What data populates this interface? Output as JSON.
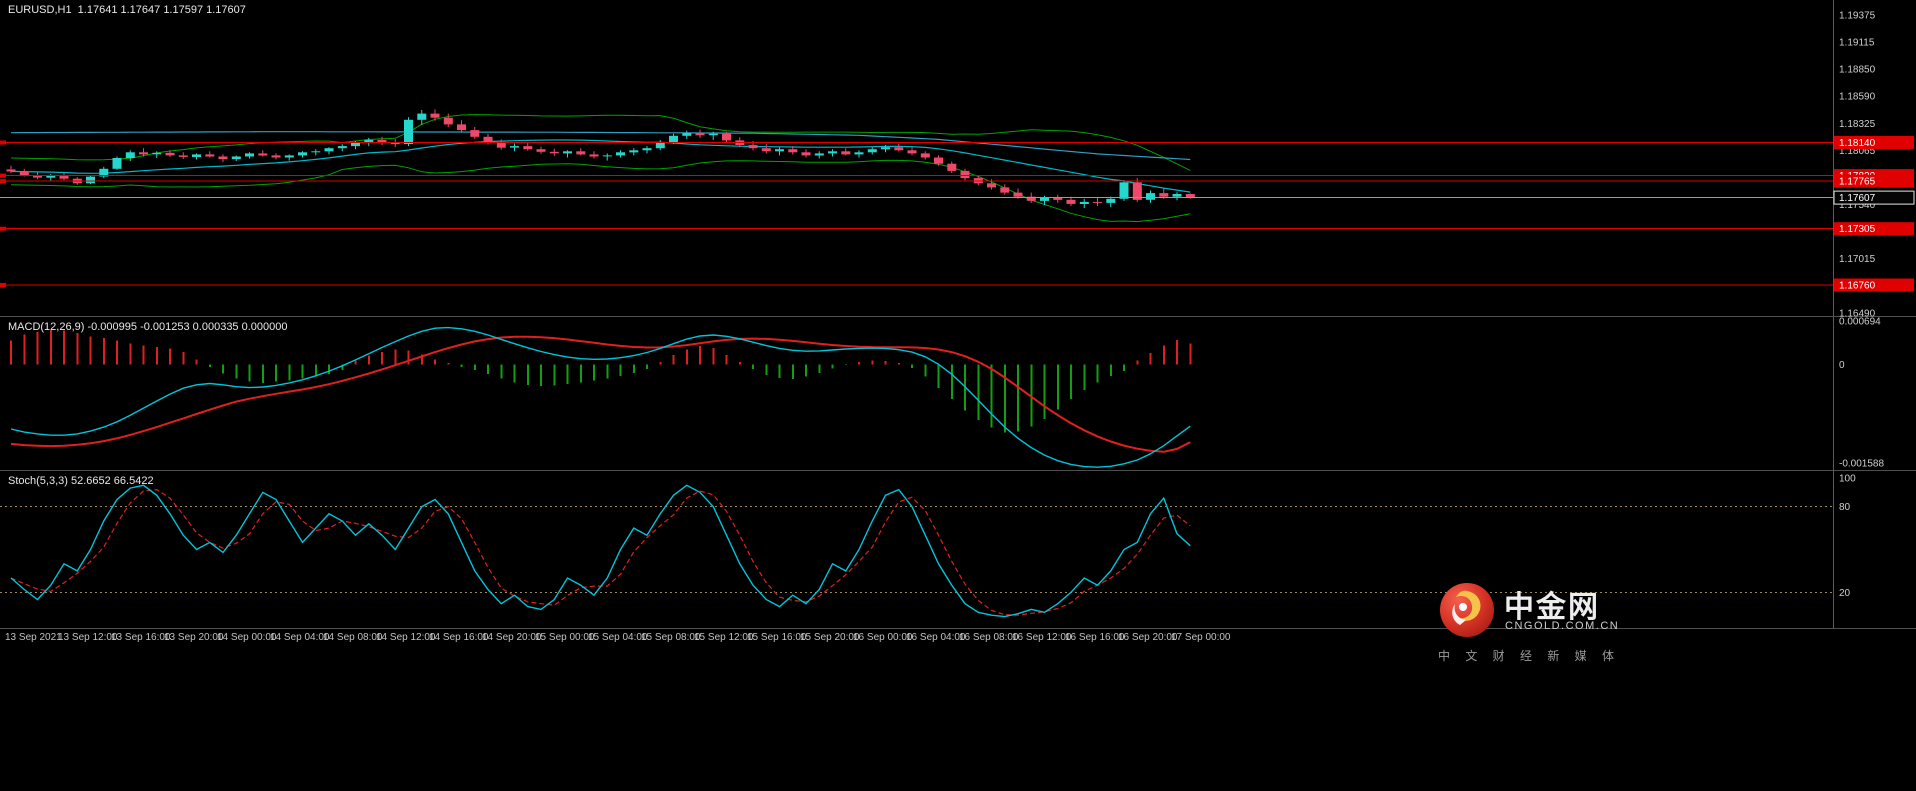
{
  "window": {
    "title_ohlc": "EURUSD,H1  1.17641 1.17647 1.17597 1.17607"
  },
  "colors": {
    "up": "#26d7cd",
    "down": "#f0486a",
    "band": "#00a400",
    "ma_fast": "#00b7c9",
    "ma_trend": "#2e9ec4",
    "hline": "#e00000",
    "price_line": "#57b6c2",
    "macd_line": "#00c4d8",
    "signal_line": "#e02020",
    "hist_pos": "#e02020",
    "hist_neg": "#12a012",
    "stoch_k": "#00c4d8",
    "stoch_d": "#e02020",
    "level": "#9a8a62",
    "tag_red_bg": "#e00000",
    "text": "#cfcfcf",
    "separator": "#5a5a5a"
  },
  "chart_data": {
    "type": "candlestick",
    "symbol": "EURUSD",
    "timeframe": "H1",
    "quote": {
      "open": "1.17641",
      "high": "1.17647",
      "low": "1.17597",
      "close": "1.17607"
    },
    "price_axis": {
      "top": 1.1952,
      "bottom": 1.1646,
      "ticks": [
        {
          "label": "1.19375",
          "value": 1.19375
        },
        {
          "label": "1.19115",
          "value": 1.19115
        },
        {
          "label": "1.18850",
          "value": 1.1885
        },
        {
          "label": "1.18590",
          "value": 1.1859
        },
        {
          "label": "1.18325",
          "value": 1.18325
        },
        {
          "label": "1.18065",
          "value": 1.18065
        },
        {
          "label": "1.17540",
          "value": 1.1754
        },
        {
          "label": "1.17015",
          "value": 1.17015
        },
        {
          "label": "1.16490",
          "value": 1.1649
        }
      ]
    },
    "hlines": [
      {
        "label": "1.18140",
        "value": 1.1814
      },
      {
        "label": "1.17820",
        "value": 1.1782
      },
      {
        "label": "1.17765",
        "value": 1.17765
      },
      {
        "label": "1.17305",
        "value": 1.17305
      },
      {
        "label": "1.16760",
        "value": 1.1676
      }
    ],
    "current_price": {
      "label": "1.17607",
      "value": 1.17607
    },
    "overlays": {
      "bollinger": {
        "period": 20,
        "dev": 2,
        "min_halfwidth": 0.0013
      },
      "ma_trend": [
        [
          0,
          1.18235
        ],
        [
          20,
          1.18245
        ],
        [
          40,
          1.1824
        ],
        [
          56,
          1.1823
        ],
        [
          64,
          1.1821
        ],
        [
          70,
          1.1817
        ],
        [
          76,
          1.181
        ],
        [
          82,
          1.1803
        ],
        [
          89,
          1.17975
        ]
      ]
    },
    "candles": [
      [
        1.1788,
        1.17915,
        1.17845,
        1.1786
      ],
      [
        1.1786,
        1.17885,
        1.1781,
        1.17825
      ],
      [
        1.17825,
        1.17855,
        1.17785,
        1.178
      ],
      [
        1.178,
        1.17835,
        1.17765,
        1.1782
      ],
      [
        1.1782,
        1.17845,
        1.17775,
        1.1779
      ],
      [
        1.1779,
        1.17805,
        1.1773,
        1.17745
      ],
      [
        1.17745,
        1.17825,
        1.17735,
        1.1781
      ],
      [
        1.1781,
        1.17905,
        1.17795,
        1.17885
      ],
      [
        1.17885,
        1.18005,
        1.17875,
        1.1799
      ],
      [
        1.1799,
        1.18065,
        1.1796,
        1.18045
      ],
      [
        1.18045,
        1.18085,
        1.18005,
        1.18025
      ],
      [
        1.18025,
        1.18055,
        1.1799,
        1.1804
      ],
      [
        1.1804,
        1.18065,
        1.18,
        1.18015
      ],
      [
        1.18015,
        1.18045,
        1.1798,
        1.18
      ],
      [
        1.18,
        1.18035,
        1.17975,
        1.18025
      ],
      [
        1.18025,
        1.18055,
        1.17995,
        1.18005
      ],
      [
        1.18005,
        1.18025,
        1.1795,
        1.1798
      ],
      [
        1.1798,
        1.18015,
        1.1796,
        1.18005
      ],
      [
        1.18005,
        1.18045,
        1.17985,
        1.18035
      ],
      [
        1.18035,
        1.18065,
        1.18005,
        1.18015
      ],
      [
        1.18015,
        1.18035,
        1.17975,
        1.17995
      ],
      [
        1.17995,
        1.18025,
        1.17965,
        1.18015
      ],
      [
        1.18015,
        1.18055,
        1.17995,
        1.18045
      ],
      [
        1.18045,
        1.18075,
        1.18015,
        1.18055
      ],
      [
        1.18055,
        1.18095,
        1.18025,
        1.18085
      ],
      [
        1.18085,
        1.18125,
        1.18055,
        1.18105
      ],
      [
        1.18105,
        1.18155,
        1.18075,
        1.18135
      ],
      [
        1.18135,
        1.18185,
        1.18105,
        1.18165
      ],
      [
        1.18165,
        1.18195,
        1.18115,
        1.18145
      ],
      [
        1.18145,
        1.18175,
        1.18095,
        1.18125
      ],
      [
        1.18125,
        1.18385,
        1.18105,
        1.1836
      ],
      [
        1.1836,
        1.18455,
        1.1831,
        1.1842
      ],
      [
        1.1842,
        1.1846,
        1.1835,
        1.1838
      ],
      [
        1.1838,
        1.1842,
        1.1829,
        1.18315
      ],
      [
        1.18315,
        1.18355,
        1.18235,
        1.1826
      ],
      [
        1.1826,
        1.1829,
        1.18175,
        1.18195
      ],
      [
        1.18195,
        1.18225,
        1.1812,
        1.1814
      ],
      [
        1.1814,
        1.1817,
        1.1807,
        1.1809
      ],
      [
        1.1809,
        1.1813,
        1.18055,
        1.18105
      ],
      [
        1.18105,
        1.18135,
        1.1806,
        1.18075
      ],
      [
        1.18075,
        1.181,
        1.1803,
        1.1805
      ],
      [
        1.1805,
        1.1808,
        1.1801,
        1.18035
      ],
      [
        1.18035,
        1.18065,
        1.17995,
        1.18055
      ],
      [
        1.18055,
        1.18085,
        1.18015,
        1.18025
      ],
      [
        1.18025,
        1.18055,
        1.17985,
        1.18005
      ],
      [
        1.18005,
        1.18035,
        1.17965,
        1.18015
      ],
      [
        1.18015,
        1.18065,
        1.17995,
        1.18045
      ],
      [
        1.18045,
        1.18085,
        1.18015,
        1.18065
      ],
      [
        1.18065,
        1.18105,
        1.18035,
        1.18085
      ],
      [
        1.18085,
        1.18165,
        1.18065,
        1.18145
      ],
      [
        1.18145,
        1.18225,
        1.18125,
        1.18205
      ],
      [
        1.18205,
        1.18255,
        1.18175,
        1.1823
      ],
      [
        1.1823,
        1.18265,
        1.18185,
        1.1821
      ],
      [
        1.1821,
        1.18245,
        1.18165,
        1.18225
      ],
      [
        1.18225,
        1.18245,
        1.1814,
        1.1816
      ],
      [
        1.1816,
        1.1819,
        1.18095,
        1.18115
      ],
      [
        1.18115,
        1.18155,
        1.18065,
        1.18085
      ],
      [
        1.18085,
        1.18125,
        1.18035,
        1.18055
      ],
      [
        1.18055,
        1.18095,
        1.18015,
        1.18075
      ],
      [
        1.18075,
        1.18105,
        1.18025,
        1.18045
      ],
      [
        1.18045,
        1.18075,
        1.17995,
        1.18015
      ],
      [
        1.18015,
        1.18055,
        1.17985,
        1.18035
      ],
      [
        1.18035,
        1.18075,
        1.18005,
        1.18055
      ],
      [
        1.18055,
        1.18085,
        1.18015,
        1.18025
      ],
      [
        1.18025,
        1.18065,
        1.17995,
        1.18045
      ],
      [
        1.18045,
        1.18095,
        1.18025,
        1.18075
      ],
      [
        1.18075,
        1.18115,
        1.18045,
        1.18095
      ],
      [
        1.18095,
        1.18125,
        1.18055,
        1.18065
      ],
      [
        1.18065,
        1.18095,
        1.18015,
        1.18035
      ],
      [
        1.18035,
        1.18055,
        1.17975,
        1.17995
      ],
      [
        1.17995,
        1.18015,
        1.17915,
        1.17935
      ],
      [
        1.17935,
        1.17955,
        1.17845,
        1.17865
      ],
      [
        1.17865,
        1.17885,
        1.17775,
        1.17795
      ],
      [
        1.17795,
        1.17825,
        1.17725,
        1.17745
      ],
      [
        1.17745,
        1.17785,
        1.17685,
        1.17705
      ],
      [
        1.17705,
        1.17735,
        1.17635,
        1.17655
      ],
      [
        1.17655,
        1.17695,
        1.17595,
        1.17615
      ],
      [
        1.17615,
        1.17655,
        1.17555,
        1.17575
      ],
      [
        1.17575,
        1.17625,
        1.17535,
        1.17605
      ],
      [
        1.17605,
        1.17635,
        1.17555,
        1.17585
      ],
      [
        1.17585,
        1.17615,
        1.17525,
        1.17545
      ],
      [
        1.17545,
        1.17595,
        1.17505,
        1.17565
      ],
      [
        1.17565,
        1.17605,
        1.17525,
        1.17555
      ],
      [
        1.17555,
        1.17615,
        1.17515,
        1.17595
      ],
      [
        1.17595,
        1.17775,
        1.17575,
        1.17755
      ],
      [
        1.17755,
        1.17795,
        1.17565,
        1.17585
      ],
      [
        1.17585,
        1.17675,
        1.17555,
        1.1765
      ],
      [
        1.1765,
        1.17695,
        1.17595,
        1.17615
      ],
      [
        1.17615,
        1.1766,
        1.1758,
        1.17641
      ],
      [
        1.17641,
        1.17647,
        1.17597,
        1.17607
      ]
    ],
    "time_labels": [
      {
        "label": "13 Sep 2021",
        "index": 0
      },
      {
        "label": "13 Sep 12:00",
        "index": 4
      },
      {
        "label": "13 Sep 16:00",
        "index": 8
      },
      {
        "label": "13 Sep 20:00",
        "index": 12
      },
      {
        "label": "14 Sep 00:00",
        "index": 16
      },
      {
        "label": "14 Sep 04:00",
        "index": 20
      },
      {
        "label": "14 Sep 08:00",
        "index": 24
      },
      {
        "label": "14 Sep 12:00",
        "index": 28
      },
      {
        "label": "14 Sep 16:00",
        "index": 32
      },
      {
        "label": "14 Sep 20:00",
        "index": 36
      },
      {
        "label": "15 Sep 00:00",
        "index": 40
      },
      {
        "label": "15 Sep 04:00",
        "index": 44
      },
      {
        "label": "15 Sep 08:00",
        "index": 48
      },
      {
        "label": "15 Sep 12:00",
        "index": 52
      },
      {
        "label": "15 Sep 16:00",
        "index": 56
      },
      {
        "label": "15 Sep 20:00",
        "index": 60
      },
      {
        "label": "16 Sep 00:00",
        "index": 64
      },
      {
        "label": "16 Sep 04:00",
        "index": 68
      },
      {
        "label": "16 Sep 08:00",
        "index": 72
      },
      {
        "label": "16 Sep 12:00",
        "index": 76
      },
      {
        "label": "16 Sep 16:00",
        "index": 80
      },
      {
        "label": "16 Sep 20:00",
        "index": 84
      },
      {
        "label": "17 Sep 00:00",
        "index": 88
      }
    ],
    "macd": {
      "title": "MACD(12,26,9) -0.000995 -0.001253 0.000335 0.000000",
      "axis": {
        "max": 0.00076,
        "min": -0.0017
      },
      "value_scale": 1e-06,
      "ticks": [
        {
          "label": "0.000694",
          "value": 0.000694
        },
        {
          "label": "0",
          "value": 0
        },
        {
          "label": "-0.001588",
          "value": -0.001588
        }
      ],
      "macd_line": [
        -1040,
        -1090,
        -1120,
        -1140,
        -1140,
        -1120,
        -1075,
        -1010,
        -925,
        -820,
        -705,
        -590,
        -480,
        -385,
        -330,
        -310,
        -330,
        -360,
        -375,
        -365,
        -340,
        -300,
        -250,
        -185,
        -110,
        -25,
        70,
        170,
        270,
        365,
        455,
        530,
        580,
        590,
        570,
        530,
        470,
        400,
        330,
        265,
        205,
        155,
        115,
        90,
        80,
        85,
        105,
        140,
        190,
        255,
        330,
        405,
        455,
        470,
        450,
        410,
        355,
        300,
        255,
        225,
        210,
        215,
        230,
        245,
        255,
        260,
        255,
        235,
        195,
        120,
        0,
        -160,
        -360,
        -580,
        -800,
        -1010,
        -1190,
        -1340,
        -1460,
        -1550,
        -1610,
        -1645,
        -1655,
        -1640,
        -1600,
        -1540,
        -1440,
        -1310,
        -1150,
        -995
      ],
      "signal_line": [
        -1280,
        -1300,
        -1310,
        -1315,
        -1310,
        -1295,
        -1270,
        -1235,
        -1190,
        -1135,
        -1075,
        -1010,
        -940,
        -870,
        -800,
        -730,
        -663,
        -600,
        -553,
        -513,
        -475,
        -440,
        -405,
        -365,
        -320,
        -268,
        -210,
        -148,
        -82,
        -15,
        55,
        125,
        195,
        260,
        318,
        368,
        405,
        430,
        442,
        443,
        435,
        420,
        398,
        372,
        345,
        318,
        295,
        278,
        270,
        272,
        285,
        308,
        338,
        368,
        392,
        408,
        413,
        408,
        395,
        376,
        353,
        330,
        310,
        293,
        282,
        276,
        274,
        274,
        272,
        262,
        238,
        195,
        130,
        40,
        -75,
        -212,
        -365,
        -522,
        -675,
        -818,
        -948,
        -1062,
        -1160,
        -1242,
        -1308,
        -1358,
        -1392,
        -1408,
        -1360,
        -1253
      ],
      "histogram": [
        380,
        480,
        520,
        550,
        540,
        500,
        450,
        420,
        380,
        330,
        300,
        280,
        250,
        200,
        80,
        -40,
        -150,
        -230,
        -280,
        -300,
        -280,
        -260,
        -230,
        -200,
        -160,
        -90,
        60,
        140,
        200,
        240,
        220,
        160,
        80,
        20,
        -40,
        -90,
        -160,
        -230,
        -290,
        -330,
        -350,
        -340,
        -320,
        -290,
        -260,
        -230,
        -190,
        -140,
        -80,
        40,
        150,
        240,
        290,
        260,
        150,
        40,
        -80,
        -170,
        -220,
        -240,
        -200,
        -140,
        -70,
        -10,
        40,
        60,
        50,
        20,
        -60,
        -200,
        -380,
        -560,
        -740,
        -900,
        -1020,
        -1100,
        -1080,
        -1000,
        -880,
        -730,
        -560,
        -410,
        -290,
        -190,
        -110,
        60,
        180,
        300,
        390,
        335
      ]
    },
    "stoch": {
      "title": "Stoch(5,3,3) 52.6652 66.5422",
      "axis": {
        "max": 105,
        "min": -5
      },
      "levels": [
        80,
        20
      ],
      "ticks": [
        {
          "label": "100",
          "value": 100
        },
        {
          "label": "80",
          "value": 80
        },
        {
          "label": "20",
          "value": 20
        }
      ],
      "k": [
        30,
        22,
        15,
        25,
        40,
        35,
        50,
        70,
        85,
        93,
        95,
        88,
        75,
        60,
        50,
        55,
        48,
        60,
        75,
        90,
        85,
        70,
        55,
        65,
        75,
        70,
        60,
        68,
        60,
        50,
        65,
        80,
        85,
        75,
        55,
        35,
        22,
        12,
        18,
        10,
        8,
        15,
        30,
        25,
        18,
        30,
        50,
        65,
        60,
        75,
        88,
        95,
        90,
        80,
        60,
        40,
        25,
        15,
        10,
        18,
        12,
        22,
        40,
        35,
        50,
        70,
        88,
        92,
        80,
        60,
        40,
        25,
        12,
        6,
        4,
        3,
        5,
        8,
        6,
        12,
        20,
        30,
        25,
        35,
        50,
        55,
        75,
        86,
        61,
        52.6652
      ]
    }
  },
  "watermark": {
    "brand": "中金网",
    "domain": "CNGOLD.COM.CN",
    "tagline": "中 文 财 经 新 媒 体"
  }
}
